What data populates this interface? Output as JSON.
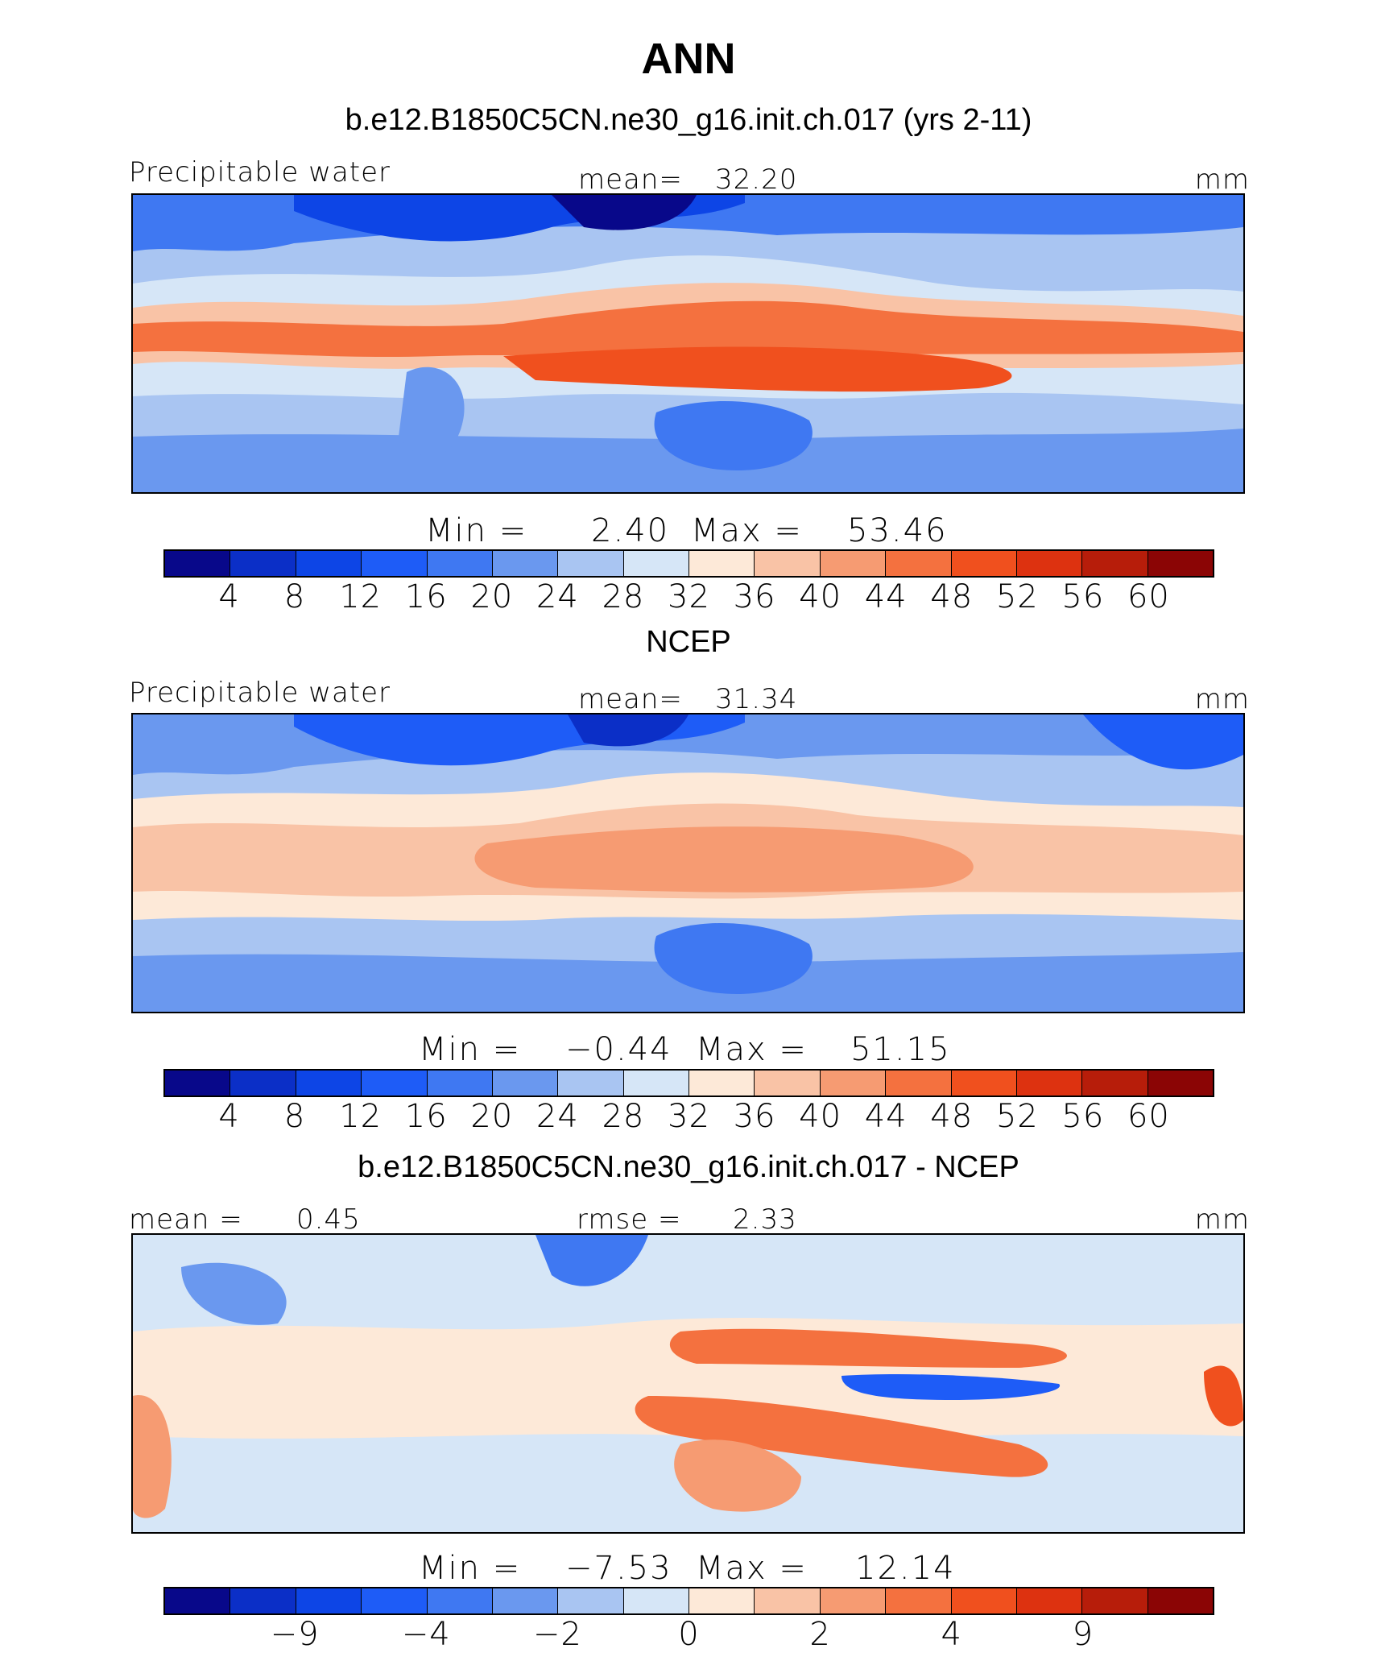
{
  "title": "ANN",
  "colors": [
    "#08088a",
    "#0b2fc7",
    "#0d45e6",
    "#1e5cf7",
    "#3f78f2",
    "#6a98ef",
    "#a9c5f2",
    "#d6e6f7",
    "#fde9d8",
    "#f9c3a6",
    "#f69b72",
    "#f4713f",
    "#f0501e",
    "#dd3210",
    "#b71d0a",
    "#8b0505"
  ],
  "chart_data": [
    {
      "type": "heatmap",
      "title": "b.e12.B1850C5CN.ne30_g16.init.ch.017 (yrs 2-11)",
      "left_label": "Precipitable water",
      "center_label": "mean=",
      "center_value": "32.20",
      "units": "mm",
      "min_label": "Min =",
      "min_value": "2.40",
      "max_label": "Max =",
      "max_value": "53.46",
      "colorbar_ticks": [
        "4",
        "8",
        "12",
        "16",
        "20",
        "24",
        "28",
        "32",
        "36",
        "40",
        "44",
        "48",
        "52",
        "56",
        "60"
      ]
    },
    {
      "type": "heatmap",
      "title": "NCEP",
      "left_label": "Precipitable water",
      "center_label": "mean=",
      "center_value": "31.34",
      "units": "mm",
      "min_label": "Min =",
      "min_value": "−0.44",
      "max_label": "Max =",
      "max_value": "51.15",
      "colorbar_ticks": [
        "4",
        "8",
        "12",
        "16",
        "20",
        "24",
        "28",
        "32",
        "36",
        "40",
        "44",
        "48",
        "52",
        "56",
        "60"
      ]
    },
    {
      "type": "heatmap",
      "title": "b.e12.B1850C5CN.ne30_g16.init.ch.017 - NCEP",
      "left_label": "mean =",
      "left_value": "0.45",
      "center_label": "rmse =",
      "center_value": "2.33",
      "units": "mm",
      "min_label": "Min =",
      "min_value": "−7.53",
      "max_label": "Max =",
      "max_value": "12.14",
      "colorbar_ticks": [
        "−9",
        "−4",
        "−2",
        "0",
        "2",
        "4",
        "9"
      ]
    }
  ]
}
